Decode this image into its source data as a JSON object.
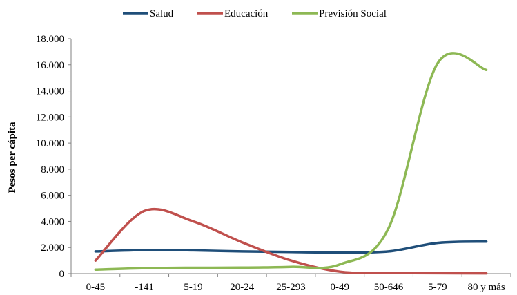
{
  "chart_data": {
    "type": "line",
    "title": "",
    "xlabel": "",
    "ylabel": "Pesos per cápita",
    "categories": [
      "0-45",
      "-141",
      "5-19",
      "20-24",
      "25-293",
      "0-49",
      "50-646",
      "5-79",
      "80 y más"
    ],
    "y_tick_labels": [
      "0",
      "2.000",
      "4.000",
      "6.000",
      "8.000",
      "10.000",
      "12.000",
      "14.000",
      "16.000",
      "18.000"
    ],
    "ylim": [
      0,
      18000
    ],
    "grid": false,
    "legend_position": "top",
    "series": [
      {
        "name": "Salud",
        "color": "#1f4e79",
        "values": [
          1700,
          1800,
          1780,
          1700,
          1650,
          1620,
          1700,
          2350,
          2450
        ]
      },
      {
        "name": "Educación",
        "color": "#c0504d",
        "values": [
          1000,
          4800,
          4000,
          2400,
          1000,
          150,
          50,
          30,
          20
        ]
      },
      {
        "name": "Previsión Social",
        "color": "#8db854",
        "values": [
          300,
          420,
          450,
          460,
          520,
          700,
          3500,
          16100,
          15600
        ]
      }
    ]
  }
}
